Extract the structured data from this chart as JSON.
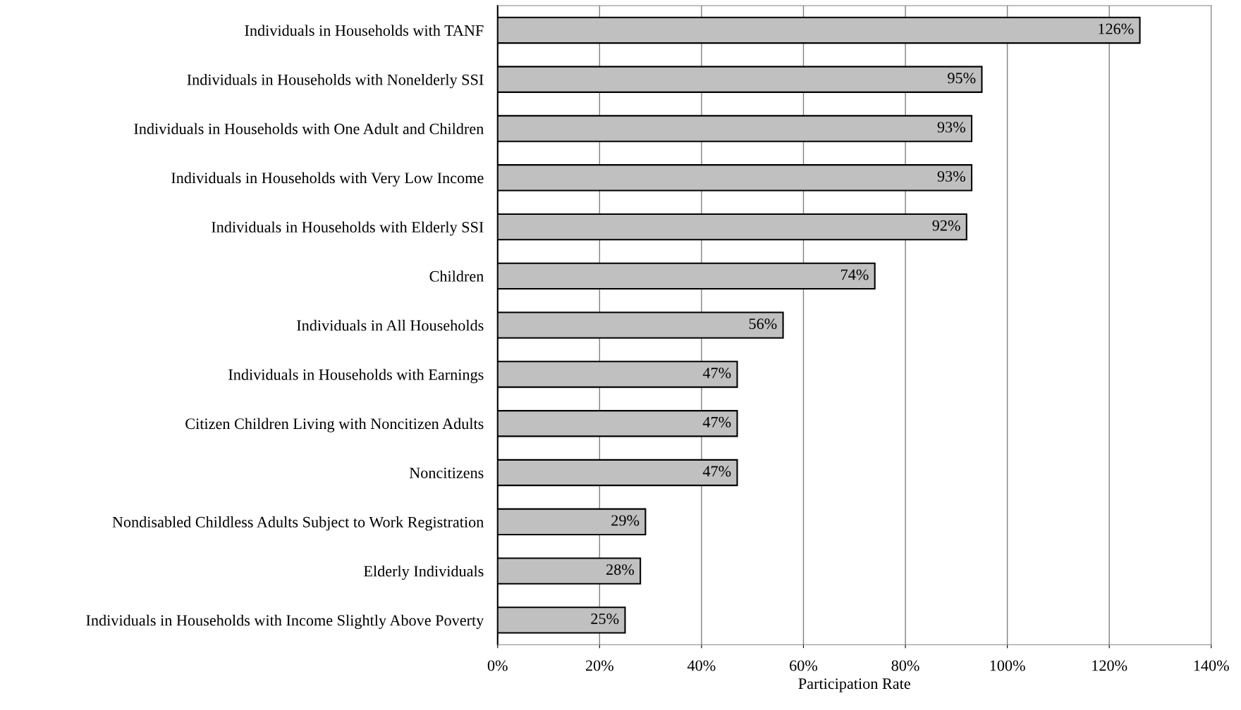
{
  "chart_data": {
    "type": "bar",
    "orientation": "horizontal",
    "xlabel": "Participation Rate",
    "categories": [
      "Individuals in Households with TANF",
      "Individuals in Households with Nonelderly SSI",
      "Individuals in Households with One Adult and Children",
      "Individuals in Households with Very Low Income",
      "Individuals in Households with Elderly SSI",
      "Children",
      "Individuals in All Households",
      "Individuals in Households with Earnings",
      "Citizen Children Living with Noncitizen Adults",
      "Noncitizens",
      "Nondisabled Childless Adults Subject to Work Registration",
      "Elderly Individuals",
      "Individuals in Households with Income Slightly Above Poverty"
    ],
    "values": [
      126,
      95,
      93,
      93,
      92,
      74,
      56,
      47,
      47,
      47,
      29,
      28,
      25
    ],
    "value_labels": [
      "126%",
      "95%",
      "93%",
      "93%",
      "92%",
      "74%",
      "56%",
      "47%",
      "47%",
      "47%",
      "29%",
      "28%",
      "25%"
    ],
    "color": "#c0c0c0",
    "xlim": [
      0,
      140
    ],
    "xticks": [
      {
        "value": 0,
        "label": "0%"
      },
      {
        "value": 20,
        "label": "20%"
      },
      {
        "value": 40,
        "label": "40%"
      },
      {
        "value": 60,
        "label": "60%"
      },
      {
        "value": 80,
        "label": "80%"
      },
      {
        "value": 100,
        "label": "100%"
      },
      {
        "value": 120,
        "label": "120%"
      },
      {
        "value": 140,
        "label": "140%"
      }
    ],
    "grid": "x",
    "legend": false
  }
}
